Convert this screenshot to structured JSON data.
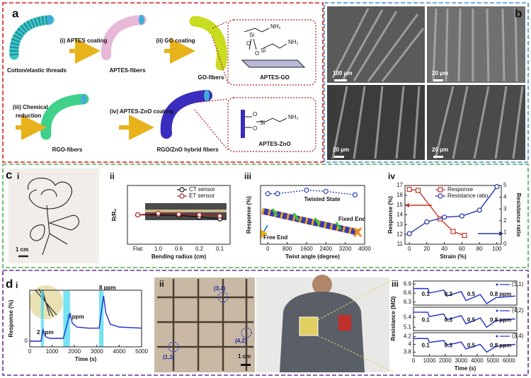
{
  "figure": {
    "a": {
      "label": "a",
      "steps": [
        "(i) APTES coating",
        "(ii) GO coating",
        "(iii) Chemical",
        "reduction",
        "(iv) APTES-ZnO coating"
      ],
      "fibers": [
        "Cotton/elastic threads",
        "APTES-fibers",
        "GO-fibers",
        "RGO-fibers",
        "RGO/ZnO hybrid fibers"
      ],
      "insets": [
        "APTES-GO",
        "APTES-ZnO"
      ],
      "chem": [
        "Si",
        "NH₂",
        "O",
        "O",
        "Si",
        "NH₂",
        "O",
        "O",
        "Si",
        "NH₂"
      ]
    },
    "b": {
      "label": "b",
      "scale_bars": [
        "100 μm",
        "20 μm",
        "20 μm",
        "20 μm"
      ]
    },
    "c": {
      "label": "c",
      "sub": [
        "i",
        "ii",
        "iii",
        "iv"
      ],
      "scale_bar": "1 cm",
      "annotations": [
        "Twisted State",
        "Free End",
        "Fixed End"
      ]
    },
    "d": {
      "label": "d",
      "sub": [
        "i",
        "ii",
        "iii"
      ],
      "annotations": [
        "2 ppm",
        "5 ppm",
        "8 ppm"
      ],
      "sites": [
        "(3,4)",
        "(4,2)",
        "(1,1)"
      ],
      "scale_bar": "1 cm"
    }
  },
  "chart_data": [
    {
      "type": "line",
      "categories": [
        "Flat",
        "1.0",
        "0.6",
        "0.2",
        "0.1"
      ],
      "xlabel": "Bending radius (cm)",
      "ylabel": "R/R₀",
      "ylim": [
        0,
        2
      ],
      "series": [
        {
          "name": "CT sensor",
          "color": "#111111",
          "marker": "circle",
          "values": [
            1.0,
            1.0,
            0.98,
            0.93,
            0.86
          ]
        },
        {
          "name": "ET sensor",
          "color": "#b22222",
          "marker": "circle",
          "values": [
            1.0,
            1.05,
            1.02,
            1.0,
            0.96
          ]
        }
      ]
    },
    {
      "type": "line",
      "x": [
        0,
        400,
        1600,
        2400,
        3600
      ],
      "xlim": [
        -300,
        4000
      ],
      "xticks": [
        0,
        800,
        1600,
        2400,
        3200,
        4000
      ],
      "xlabel": "Twist angle (degree)",
      "ylabel": "Response (%)",
      "ylim": [
        0,
        10
      ],
      "series": [
        {
          "color": "#1f3fbf",
          "marker": "circle",
          "dash": true,
          "values": [
            8.6,
            8.6,
            9.2,
            9.0,
            8.4
          ]
        }
      ]
    },
    {
      "type": "line",
      "xlim": [
        -5,
        105
      ],
      "xticks": [
        0,
        20,
        40,
        60,
        80,
        100
      ],
      "xlabel": "Strain (%)",
      "ylabel": "Response (%)",
      "y2label": "Resistance ratio",
      "ylim": [
        11,
        17
      ],
      "yticks": [
        11,
        12,
        13,
        14,
        15,
        16,
        17
      ],
      "y2lim": [
        0,
        5
      ],
      "y2ticks": [
        0,
        1,
        2,
        3,
        4,
        5
      ],
      "series": [
        {
          "name": "Response",
          "color": "#c0392b",
          "marker": "square",
          "x": [
            0,
            10,
            35,
            50,
            63
          ],
          "values": [
            16.6,
            16.5,
            13.6,
            12.3,
            11.9
          ]
        },
        {
          "name": "Resistance ratio",
          "color": "#2233aa",
          "marker": "circle",
          "axis": "y2",
          "x": [
            0,
            20,
            40,
            60,
            80,
            100
          ],
          "values": [
            0.9,
            1.9,
            2.3,
            2.4,
            2.9,
            4.9
          ]
        }
      ]
    },
    {
      "type": "line",
      "x": [
        0,
        500,
        600,
        700,
        900,
        1500,
        1800,
        1900,
        2100,
        2600,
        3100,
        3300,
        3400,
        3600,
        4000,
        5000
      ],
      "xlim": [
        0,
        5000
      ],
      "xticks": [
        0,
        1000,
        2000,
        3000,
        4000,
        5000
      ],
      "xlabel": "Time (s)",
      "ylabel": "Response (%)",
      "ylim": [
        -1,
        9
      ],
      "yticks": [
        0
      ],
      "series": [
        {
          "color": "#1f2fcc",
          "values": [
            0,
            0,
            2,
            0.8,
            0.5,
            0.5,
            5,
            3.2,
            2.5,
            2.3,
            2.3,
            8,
            5,
            3,
            2.5,
            2.3
          ]
        }
      ]
    },
    {
      "type": "line",
      "x": [
        0,
        900,
        1000,
        1900,
        2100,
        3000,
        3300,
        4200,
        4600,
        5200,
        6400
      ],
      "xlim": [
        0,
        6500
      ],
      "ylim": [
        6.2,
        7.0
      ],
      "yticks": [
        6.3,
        6.6,
        6.9
      ],
      "annotations": [
        "0.1",
        "0.3",
        "0.5",
        "0.8 ppm"
      ],
      "series": [
        {
          "name": "(1,1)",
          "color": "#1f2fcc",
          "values": [
            6.75,
            6.75,
            6.6,
            6.7,
            6.5,
            6.65,
            6.35,
            6.55,
            6.25,
            6.45,
            6.5
          ]
        }
      ]
    },
    {
      "type": "line",
      "x": [
        0,
        900,
        1000,
        1900,
        2100,
        3000,
        3300,
        4200,
        4600,
        5200,
        6400
      ],
      "xlim": [
        0,
        6500
      ],
      "ylim": [
        5.0,
        5.7
      ],
      "yticks": [
        5.1,
        5.4
      ],
      "annotations": [
        "0.1",
        "0.3",
        "0.5",
        "0.8 ppm"
      ],
      "series": [
        {
          "name": "(4,2)",
          "color": "#1f2fcc",
          "values": [
            5.55,
            5.55,
            5.42,
            5.5,
            5.32,
            5.45,
            5.2,
            5.38,
            5.1,
            5.3,
            5.35
          ]
        }
      ]
    },
    {
      "type": "line",
      "x": [
        0,
        900,
        1000,
        1900,
        2100,
        3000,
        3300,
        4200,
        4600,
        5200,
        6400
      ],
      "xlim": [
        0,
        6500
      ],
      "xticks": [
        0,
        1000,
        2000,
        3000,
        4000,
        5000,
        6000
      ],
      "xlabel": "Time (s)",
      "ylabel": "Resistance (MΩ)",
      "ylim": [
        3.7,
        4.3
      ],
      "yticks": [
        3.8,
        4.0,
        4.2
      ],
      "annotations": [
        "0.1",
        "0.3",
        "0.5",
        "0.8 ppm"
      ],
      "series": [
        {
          "name": "(3,4)",
          "color": "#1f2fcc",
          "values": [
            4.15,
            4.15,
            4.05,
            4.1,
            3.98,
            4.06,
            3.88,
            4.0,
            3.8,
            3.95,
            4.0
          ]
        }
      ]
    }
  ]
}
